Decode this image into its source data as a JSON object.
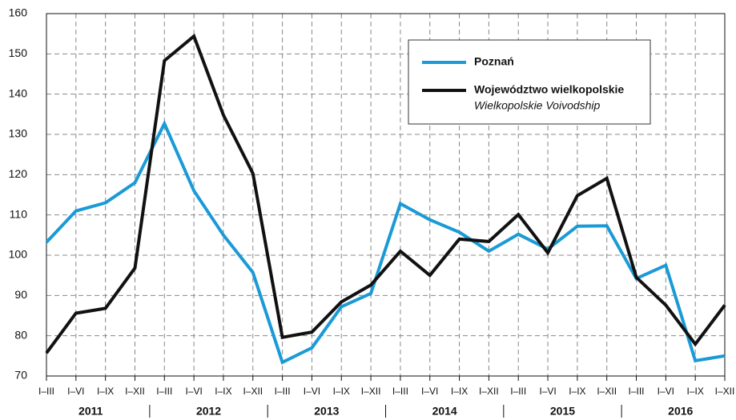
{
  "chart_data": {
    "type": "line",
    "categories": [
      "I–III",
      "I–VI",
      "I–IX",
      "I–XII",
      "I–III",
      "I–VI",
      "I–IX",
      "I–XII",
      "I–III",
      "I–VI",
      "I–IX",
      "I–XII",
      "I–III",
      "I–VI",
      "I–IX",
      "I–XII",
      "I–III",
      "I–VI",
      "I–IX",
      "I–XII",
      "I–III",
      "I–VI",
      "I–IX",
      "I–XII"
    ],
    "years": [
      "2011",
      "2012",
      "2013",
      "2014",
      "2015",
      "2016"
    ],
    "series": [
      {
        "name": "Poznań",
        "color": "#1a9ad6",
        "values": [
          103.2,
          111,
          113,
          118,
          132.7,
          116,
          105,
          95.7,
          73.4,
          77,
          87.2,
          90.5,
          112.8,
          108.8,
          105.7,
          101,
          105.2,
          101.5,
          107.2,
          107.3,
          94.2,
          97.5,
          73.8,
          75
        ]
      },
      {
        "name": "Województwo wielkopolskie",
        "subtitle": "Wielkopolskie Voivodship",
        "color": "#111111",
        "values": [
          75.7,
          85.6,
          86.8,
          96.8,
          148.3,
          154.4,
          134.8,
          120.3,
          79.6,
          80.9,
          88.4,
          92.6,
          101,
          95,
          104,
          103.4,
          110.1,
          100.6,
          114.8,
          119.1,
          94.5,
          87.6,
          77.9,
          87.6
        ]
      }
    ],
    "ylim": [
      70,
      160
    ],
    "yticks": [
      70,
      80,
      90,
      100,
      110,
      120,
      130,
      140,
      150,
      160
    ],
    "grid": true,
    "legend": "upper right"
  }
}
